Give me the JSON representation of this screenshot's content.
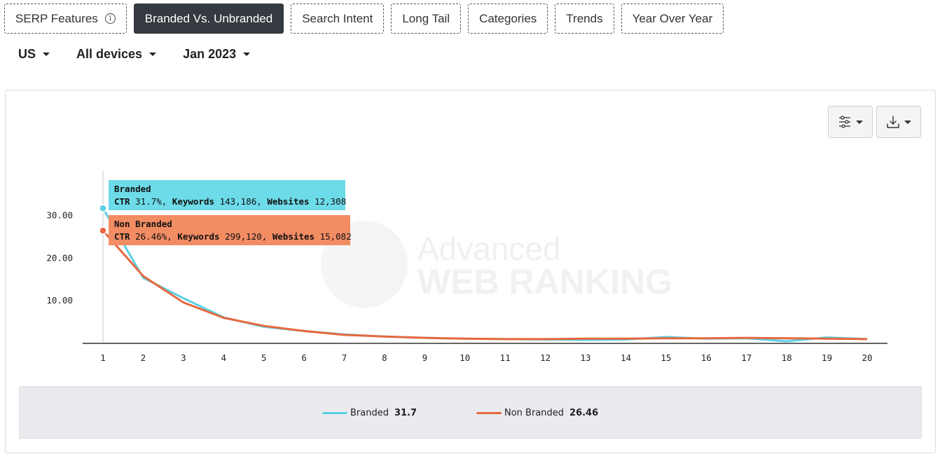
{
  "tabs": [
    {
      "label": "SERP Features",
      "info": "i",
      "active": false
    },
    {
      "label": "Branded Vs. Unbranded",
      "active": true
    },
    {
      "label": "Search Intent",
      "active": false
    },
    {
      "label": "Long Tail",
      "active": false
    },
    {
      "label": "Categories",
      "active": false
    },
    {
      "label": "Trends",
      "active": false
    },
    {
      "label": "Year Over Year",
      "active": false
    }
  ],
  "filters": {
    "country": "US",
    "device": "All devices",
    "period": "Jan 2023"
  },
  "toolbar": {
    "settings_icon": "sliders-icon",
    "download_icon": "download-icon"
  },
  "watermark": {
    "line1": "Advanced",
    "line2": "WEB RANKING"
  },
  "tooltips": {
    "branded": {
      "title": "Branded",
      "ctr_label": "CTR",
      "ctr_value": "31.7%",
      "keywords_label": "Keywords",
      "keywords_value": "143,186",
      "websites_label": "Websites",
      "websites_value": "12,308"
    },
    "non_branded": {
      "title": "Non Branded",
      "ctr_label": "CTR",
      "ctr_value": "26.46%",
      "keywords_label": "Keywords",
      "keywords_value": "299,120",
      "websites_label": "Websites",
      "websites_value": "15,082"
    }
  },
  "legend": [
    {
      "name": "Branded",
      "value": "31.7"
    },
    {
      "name": "Non Branded",
      "value": "26.46"
    }
  ],
  "chart_data": {
    "type": "line",
    "x": [
      1,
      2,
      3,
      4,
      5,
      6,
      7,
      8,
      9,
      10,
      11,
      12,
      13,
      14,
      15,
      16,
      17,
      18,
      19,
      20
    ],
    "x_tick_labels": [
      "1",
      "2",
      "3",
      "4",
      "5",
      "6",
      "7",
      "8",
      "9",
      "10",
      "11",
      "12",
      "13",
      "14",
      "15",
      "16",
      "17",
      "18",
      "19",
      "20"
    ],
    "y_tick_labels": [
      "10.00",
      "20.00",
      "30.00"
    ],
    "y_ticks": [
      10,
      20,
      30
    ],
    "ylim": [
      0,
      40
    ],
    "grid": false,
    "legend_position": "bottom",
    "series": [
      {
        "name": "Branded",
        "color": "#5bd0e3",
        "values": [
          31.7,
          15.4,
          10.6,
          6.1,
          3.9,
          2.9,
          2.1,
          1.6,
          1.3,
          1.1,
          1.0,
          0.9,
          0.8,
          0.9,
          1.5,
          1.1,
          1.2,
          0.5,
          1.4,
          1.0
        ]
      },
      {
        "name": "Non Branded",
        "color": "#e8683f",
        "values": [
          26.46,
          15.8,
          9.6,
          6.0,
          4.1,
          2.9,
          2.0,
          1.6,
          1.3,
          1.1,
          1.0,
          1.0,
          1.1,
          1.1,
          1.2,
          1.2,
          1.3,
          1.2,
          1.1,
          1.0
        ]
      }
    ]
  }
}
